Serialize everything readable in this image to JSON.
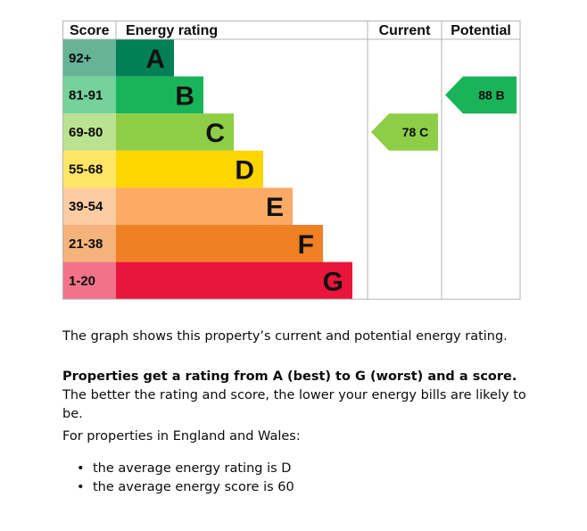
{
  "chart_data": {
    "type": "table",
    "headers": {
      "score": "Score",
      "rating": "Energy rating",
      "current": "Current",
      "potential": "Potential"
    },
    "bands": [
      {
        "score": "92+",
        "letter": "A",
        "color": "#008054",
        "score_bg": "#66b398"
      },
      {
        "score": "81-91",
        "letter": "B",
        "color": "#19b459",
        "score_bg": "#75d29b"
      },
      {
        "score": "69-80",
        "letter": "C",
        "color": "#8dce46",
        "score_bg": "#bbe290"
      },
      {
        "score": "55-68",
        "letter": "D",
        "color": "#ffd500",
        "score_bg": "#ffe666"
      },
      {
        "score": "39-54",
        "letter": "E",
        "color": "#fcaa65",
        "score_bg": "#fdcca3"
      },
      {
        "score": "21-38",
        "letter": "F",
        "color": "#ef8023",
        "score_bg": "#f5b37b"
      },
      {
        "score": "1-20",
        "letter": "G",
        "color": "#e9153b",
        "score_bg": "#f27389"
      }
    ],
    "current": {
      "value": 78,
      "letter": "C",
      "color": "#8dce46"
    },
    "potential": {
      "value": 88,
      "letter": "B",
      "color": "#19b459"
    }
  },
  "description": {
    "intro": "The graph shows this property’s current and potential energy rating.",
    "rating_bold": "Properties get a rating from A (best) to G (worst) and a score.",
    "rating_rest": " The better the rating and score, the lower your energy bills are likely to be.",
    "region_intro": "For properties in England and Wales:",
    "averages": [
      "the average energy rating is D",
      "the average energy score is 60"
    ]
  }
}
